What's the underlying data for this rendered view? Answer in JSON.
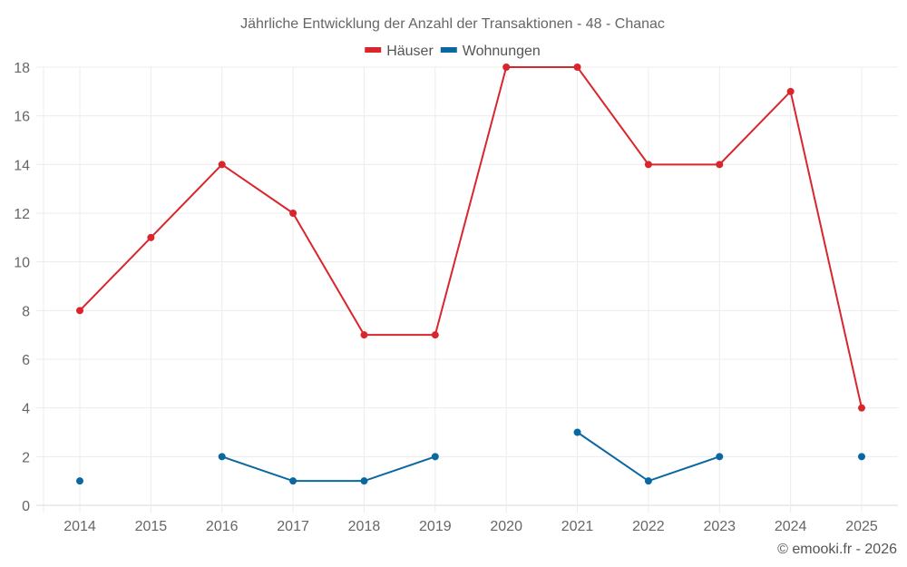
{
  "chart_data": {
    "type": "line",
    "title": "Jährliche Entwicklung der Anzahl der Transaktionen - 48 - Chanac",
    "xlabel": "",
    "ylabel": "",
    "categories": [
      "2014",
      "2015",
      "2016",
      "2017",
      "2018",
      "2019",
      "2020",
      "2021",
      "2022",
      "2023",
      "2024",
      "2025"
    ],
    "series": [
      {
        "name": "Häuser",
        "color": "#d9262d",
        "values": [
          8,
          11,
          14,
          12,
          7,
          7,
          18,
          18,
          14,
          14,
          17,
          4
        ]
      },
      {
        "name": "Wohnungen",
        "color": "#0a68a1",
        "values": [
          1,
          null,
          2,
          1,
          1,
          2,
          null,
          3,
          1,
          2,
          null,
          2
        ]
      }
    ],
    "ylim": [
      0,
      18
    ],
    "yticks": [
      0,
      2,
      4,
      6,
      8,
      10,
      12,
      14,
      16,
      18
    ],
    "grid": true,
    "legend_position": "top-center"
  },
  "credit": "© emooki.fr - 2026"
}
